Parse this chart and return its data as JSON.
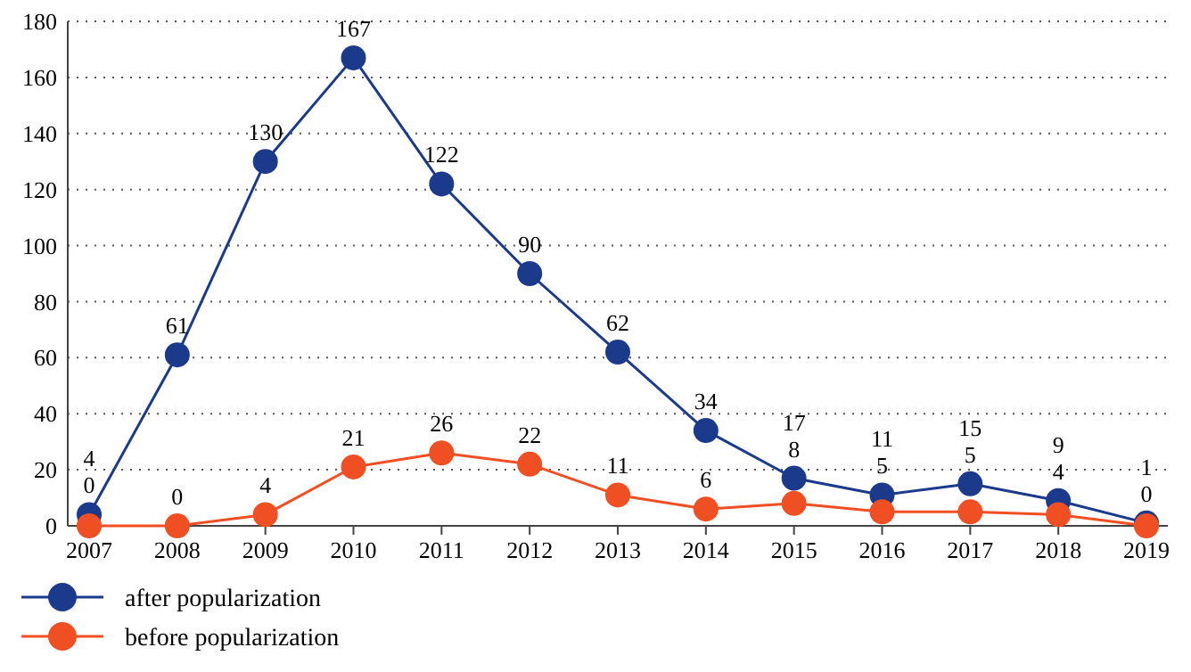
{
  "chart_data": {
    "type": "line",
    "categories": [
      "2007",
      "2008",
      "2009",
      "2010",
      "2011",
      "2012",
      "2013",
      "2014",
      "2015",
      "2016",
      "2017",
      "2018",
      "2019"
    ],
    "series": [
      {
        "name": "after popularization",
        "color": "#1b3a8c",
        "values": [
          4,
          61,
          130,
          167,
          122,
          90,
          62,
          34,
          17,
          11,
          15,
          9,
          1
        ]
      },
      {
        "name": "before popularization",
        "color": "#f04e23",
        "values": [
          0,
          0,
          4,
          21,
          26,
          22,
          11,
          6,
          8,
          5,
          5,
          4,
          0
        ]
      }
    ],
    "ylim": [
      0,
      180
    ],
    "yticks": [
      0,
      20,
      40,
      60,
      80,
      100,
      120,
      140,
      160,
      180
    ],
    "grid": "y",
    "legend": "bottom left",
    "marker": "circle",
    "line_style": "solid",
    "data_labels": true
  }
}
